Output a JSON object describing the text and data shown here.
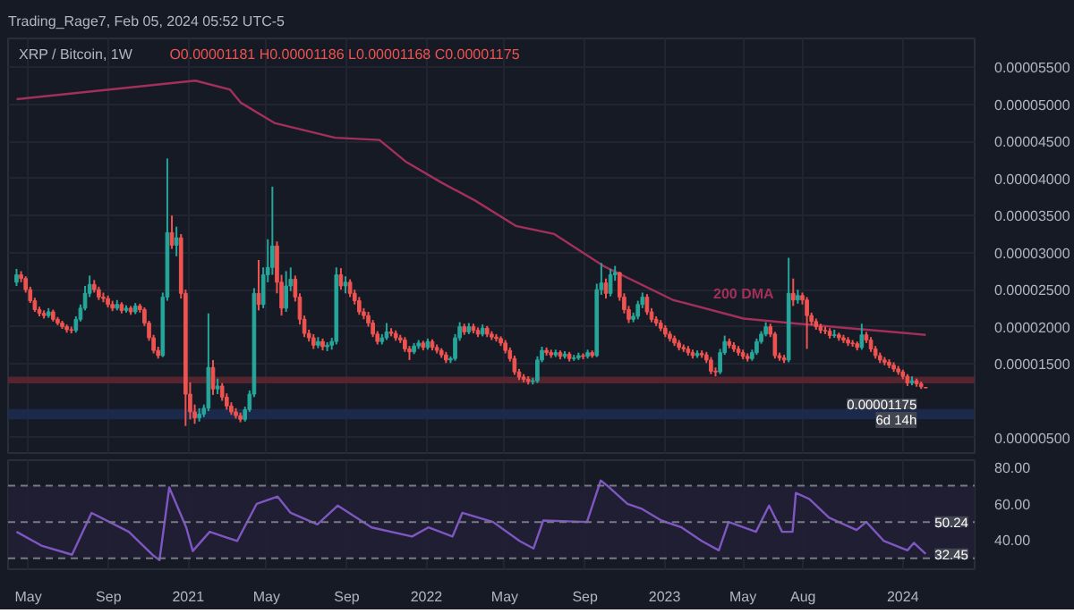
{
  "chart_data": [
    {
      "type": "candlestick",
      "title": "XRP / Bitcoin, 1W",
      "subtitle": "O0.00001181 H0.00001186 L0.00001168 C0.00001175",
      "x": [
        "2020-04-13",
        "2020-04-20",
        "2020-04-27",
        "2020-05-04",
        "2020-05-11",
        "2020-05-18",
        "2020-05-25",
        "2020-06-01",
        "2020-06-08",
        "2020-06-15",
        "2020-06-22",
        "2020-06-29",
        "2020-07-06",
        "2020-07-13",
        "2020-07-20",
        "2020-07-27",
        "2020-08-03",
        "2020-08-10",
        "2020-08-17",
        "2020-08-24",
        "2020-08-31",
        "2020-09-07",
        "2020-09-14",
        "2020-09-21",
        "2020-09-28",
        "2020-10-05",
        "2020-10-12",
        "2020-10-19",
        "2020-10-26",
        "2020-11-02",
        "2020-11-09",
        "2020-11-16",
        "2020-11-23",
        "2020-11-30",
        "2020-12-07",
        "2020-12-14",
        "2020-12-21",
        "2020-12-28",
        "2021-01-04",
        "2021-01-11",
        "2021-01-18",
        "2021-01-25",
        "2021-02-01",
        "2021-02-08",
        "2021-02-15",
        "2021-02-22",
        "2021-03-01",
        "2021-03-08",
        "2021-03-15",
        "2021-03-22",
        "2021-03-29",
        "2021-04-05",
        "2021-04-12",
        "2021-04-19",
        "2021-04-26",
        "2021-05-03",
        "2021-05-10",
        "2021-05-17",
        "2021-05-24",
        "2021-05-31",
        "2021-06-07",
        "2021-06-14",
        "2021-06-21",
        "2021-06-28",
        "2021-07-05",
        "2021-07-12",
        "2021-07-19",
        "2021-07-26",
        "2021-08-02",
        "2021-08-09",
        "2021-08-16",
        "2021-08-23",
        "2021-08-30",
        "2021-09-06",
        "2021-09-13",
        "2021-09-20",
        "2021-09-27",
        "2021-10-04",
        "2021-10-11",
        "2021-10-18",
        "2021-10-25",
        "2021-11-01",
        "2021-11-08",
        "2021-11-15",
        "2021-11-22",
        "2021-11-29",
        "2021-12-06",
        "2021-12-13",
        "2021-12-20",
        "2021-12-27",
        "2022-01-03",
        "2022-01-10",
        "2022-01-17",
        "2022-01-24",
        "2022-01-31",
        "2022-02-07",
        "2022-02-14",
        "2022-02-21",
        "2022-02-28",
        "2022-03-07",
        "2022-03-14",
        "2022-03-21",
        "2022-03-28",
        "2022-04-04",
        "2022-04-11",
        "2022-04-18",
        "2022-04-25",
        "2022-05-02",
        "2022-05-09",
        "2022-05-16",
        "2022-05-23",
        "2022-05-30",
        "2022-06-06",
        "2022-06-13",
        "2022-06-20",
        "2022-06-27",
        "2022-07-04",
        "2022-07-11",
        "2022-07-18",
        "2022-07-25",
        "2022-08-01",
        "2022-08-08",
        "2022-08-15",
        "2022-08-22",
        "2022-08-29",
        "2022-09-05",
        "2022-09-12",
        "2022-09-19",
        "2022-09-26",
        "2022-10-03",
        "2022-10-10",
        "2022-10-17",
        "2022-10-24",
        "2022-10-31",
        "2022-11-07",
        "2022-11-14",
        "2022-11-21",
        "2022-11-28",
        "2022-12-05",
        "2022-12-12",
        "2022-12-19",
        "2022-12-26",
        "2023-01-02",
        "2023-01-09",
        "2023-01-16",
        "2023-01-23",
        "2023-01-30",
        "2023-02-06",
        "2023-02-13",
        "2023-02-20",
        "2023-02-27",
        "2023-03-06",
        "2023-03-13",
        "2023-03-20",
        "2023-03-27",
        "2023-04-03",
        "2023-04-10",
        "2023-04-17",
        "2023-04-24",
        "2023-05-01",
        "2023-05-08",
        "2023-05-15",
        "2023-05-22",
        "2023-05-29",
        "2023-06-05",
        "2023-06-12",
        "2023-06-19",
        "2023-06-26",
        "2023-07-03",
        "2023-07-10",
        "2023-07-17",
        "2023-07-24",
        "2023-07-31",
        "2023-08-07",
        "2023-08-14",
        "2023-08-21",
        "2023-08-28",
        "2023-09-04",
        "2023-09-11",
        "2023-09-18",
        "2023-09-25",
        "2023-10-02",
        "2023-10-09",
        "2023-10-16",
        "2023-10-23",
        "2023-10-30",
        "2023-11-06",
        "2023-11-13",
        "2023-11-20",
        "2023-11-27",
        "2023-12-04",
        "2023-12-11",
        "2023-12-18",
        "2023-12-25",
        "2024-01-01",
        "2024-01-08",
        "2024-01-15",
        "2024-01-22",
        "2024-01-29",
        "2024-02-05"
      ],
      "ohlc": [
        [
          2.6e-05,
          2.78e-05,
          2.55e-05,
          2.7e-05
        ],
        [
          2.7e-05,
          2.75e-05,
          2.6e-05,
          2.65e-05
        ],
        [
          2.65e-05,
          2.68e-05,
          2.46e-05,
          2.5e-05
        ],
        [
          2.5e-05,
          2.54e-05,
          2.32e-05,
          2.35e-05
        ],
        [
          2.35e-05,
          2.39e-05,
          2.2e-05,
          2.23e-05
        ],
        [
          2.23e-05,
          2.27e-05,
          2.14e-05,
          2.18e-05
        ],
        [
          2.18e-05,
          2.22e-05,
          2.11e-05,
          2.15e-05
        ],
        [
          2.15e-05,
          2.25e-05,
          2.12e-05,
          2.2e-05
        ],
        [
          2.2e-05,
          2.23e-05,
          2.07e-05,
          2.1e-05
        ],
        [
          2.1e-05,
          2.13e-05,
          2.02e-05,
          2.05e-05
        ],
        [
          2.05e-05,
          2.08e-05,
          1.97e-05,
          2e-05
        ],
        [
          2e-05,
          2.03e-05,
          1.92e-05,
          1.96e-05
        ],
        [
          1.96e-05,
          2e-05,
          1.91e-05,
          1.95e-05
        ],
        [
          1.95e-05,
          2.14e-05,
          1.92e-05,
          2.1e-05
        ],
        [
          2.1e-05,
          2.3e-05,
          2.07e-05,
          2.25e-05
        ],
        [
          2.25e-05,
          2.55e-05,
          2.22e-05,
          2.45e-05
        ],
        [
          2.45e-05,
          2.69e-05,
          2.4e-05,
          2.57e-05
        ],
        [
          2.57e-05,
          2.63e-05,
          2.46e-05,
          2.5e-05
        ],
        [
          2.5e-05,
          2.54e-05,
          2.36e-05,
          2.4e-05
        ],
        [
          2.4e-05,
          2.46e-05,
          2.33e-05,
          2.38e-05
        ],
        [
          2.38e-05,
          2.42e-05,
          2.26e-05,
          2.3e-05
        ],
        [
          2.3e-05,
          2.35e-05,
          2.21e-05,
          2.25e-05
        ],
        [
          2.25e-05,
          2.36e-05,
          2.22e-05,
          2.3e-05
        ],
        [
          2.3e-05,
          2.33e-05,
          2.18e-05,
          2.22e-05
        ],
        [
          2.22e-05,
          2.29e-05,
          2.19e-05,
          2.25e-05
        ],
        [
          2.25e-05,
          2.28e-05,
          2.16e-05,
          2.2e-05
        ],
        [
          2.2e-05,
          2.32e-05,
          2.17e-05,
          2.28e-05
        ],
        [
          2.28e-05,
          2.31e-05,
          2.19e-05,
          2.23e-05
        ],
        [
          2.23e-05,
          2.26e-05,
          2.01e-05,
          2.05e-05
        ],
        [
          2.05e-05,
          2.08e-05,
          1.81e-05,
          1.85e-05
        ],
        [
          1.85e-05,
          1.89e-05,
          1.64e-05,
          1.68e-05
        ],
        [
          1.68e-05,
          1.73e-05,
          1.57e-05,
          1.61e-05
        ],
        [
          1.61e-05,
          2.46e-05,
          1.59e-05,
          2.4e-05
        ],
        [
          2.4e-05,
          4.27e-05,
          2.35e-05,
          3.27e-05
        ],
        [
          3.27e-05,
          3.5e-05,
          3.05e-05,
          3.1e-05
        ],
        [
          3.1e-05,
          3.35e-05,
          2.95e-05,
          3.2e-05
        ],
        [
          3.2e-05,
          3.25e-05,
          2.38e-05,
          2.45e-05
        ],
        [
          2.45e-05,
          2.5e-05,
          6.6e-06,
          1.09e-05
        ],
        [
          1.09e-05,
          1.25e-05,
          7.5e-06,
          8.5e-06
        ],
        [
          8.5e-06,
          9.5e-06,
          6.9e-06,
          7.7e-06
        ],
        [
          7.7e-06,
          9e-06,
          7.2e-06,
          8.2e-06
        ],
        [
          8.2e-06,
          9.5e-06,
          7.8e-06,
          9e-06
        ],
        [
          9e-06,
          2.18e-05,
          8.6e-06,
          1.45e-05
        ],
        [
          1.45e-05,
          1.55e-05,
          1.08e-05,
          1.16e-05
        ],
        [
          1.16e-05,
          1.3e-05,
          1.09e-05,
          1.2e-05
        ],
        [
          1.2e-05,
          1.24e-05,
          1e-05,
          1.05e-05
        ],
        [
          1.05e-05,
          1.1e-05,
          8.8e-06,
          9.3e-06
        ],
        [
          9.3e-06,
          9.8e-06,
          8.1e-06,
          8.5e-06
        ],
        [
          8.5e-06,
          9e-06,
          7.6e-06,
          8e-06
        ],
        [
          8e-06,
          8.4e-06,
          7.1e-06,
          7.5e-06
        ],
        [
          7.5e-06,
          9.2e-06,
          7.2e-06,
          8.8e-06
        ],
        [
          8.8e-06,
          1.14e-05,
          8.5e-06,
          1.09e-05
        ],
        [
          1.09e-05,
          2.52e-05,
          1.05e-05,
          2.45e-05
        ],
        [
          2.45e-05,
          2.9e-05,
          2.22e-05,
          2.3e-05
        ],
        [
          2.3e-05,
          2.8e-05,
          2.25e-05,
          2.7e-05
        ],
        [
          2.7e-05,
          3.18e-05,
          2.6e-05,
          2.8e-05
        ],
        [
          2.8e-05,
          3.89e-05,
          2.7e-05,
          3.09e-05
        ],
        [
          3.09e-05,
          3.15e-05,
          2.45e-05,
          2.6e-05
        ],
        [
          2.6e-05,
          2.7e-05,
          2.15e-05,
          2.25e-05
        ],
        [
          2.25e-05,
          2.75e-05,
          2.2e-05,
          2.55e-05
        ],
        [
          2.55e-05,
          2.8e-05,
          2.48e-05,
          2.64e-05
        ],
        [
          2.64e-05,
          2.69e-05,
          2.34e-05,
          2.4e-05
        ],
        [
          2.4e-05,
          2.45e-05,
          2.03e-05,
          2.1e-05
        ],
        [
          2.1e-05,
          2.15e-05,
          1.86e-05,
          1.91e-05
        ],
        [
          1.91e-05,
          1.96e-05,
          1.8e-05,
          1.85e-05
        ],
        [
          1.85e-05,
          1.9e-05,
          1.7e-05,
          1.75e-05
        ],
        [
          1.75e-05,
          1.86e-05,
          1.71e-05,
          1.8e-05
        ],
        [
          1.8e-05,
          1.84e-05,
          1.68e-05,
          1.73e-05
        ],
        [
          1.73e-05,
          1.79e-05,
          1.67e-05,
          1.75e-05
        ],
        [
          1.75e-05,
          1.85e-05,
          1.69e-05,
          1.8e-05
        ],
        [
          1.8e-05,
          2.8e-05,
          1.76e-05,
          2.7e-05
        ],
        [
          2.7e-05,
          2.79e-05,
          2.5e-05,
          2.55e-05
        ],
        [
          2.55e-05,
          2.68e-05,
          2.45e-05,
          2.6e-05
        ],
        [
          2.6e-05,
          2.64e-05,
          2.4e-05,
          2.45e-05
        ],
        [
          2.45e-05,
          2.5e-05,
          2.3e-05,
          2.35e-05
        ],
        [
          2.35e-05,
          2.4e-05,
          2.16e-05,
          2.2e-05
        ],
        [
          2.2e-05,
          2.25e-05,
          2.1e-05,
          2.15e-05
        ],
        [
          2.15e-05,
          2.2e-05,
          2e-05,
          2.05e-05
        ],
        [
          2.05e-05,
          2.09e-05,
          1.86e-05,
          1.9e-05
        ],
        [
          1.9e-05,
          1.94e-05,
          1.76e-05,
          1.8e-05
        ],
        [
          1.8e-05,
          1.9e-05,
          1.76e-05,
          1.85e-05
        ],
        [
          1.85e-05,
          2.05e-05,
          1.82e-05,
          1.93e-05
        ],
        [
          1.93e-05,
          1.98e-05,
          1.87e-05,
          1.91e-05
        ],
        [
          1.91e-05,
          1.95e-05,
          1.81e-05,
          1.85e-05
        ],
        [
          1.85e-05,
          1.89e-05,
          1.78e-05,
          1.82e-05
        ],
        [
          1.82e-05,
          1.86e-05,
          1.66e-05,
          1.7e-05
        ],
        [
          1.7e-05,
          1.74e-05,
          1.55e-05,
          1.66e-05
        ],
        [
          1.66e-05,
          1.78e-05,
          1.63e-05,
          1.74e-05
        ],
        [
          1.74e-05,
          1.82e-05,
          1.7e-05,
          1.78e-05
        ],
        [
          1.78e-05,
          1.81e-05,
          1.68e-05,
          1.72e-05
        ],
        [
          1.72e-05,
          1.84e-05,
          1.69e-05,
          1.8e-05
        ],
        [
          1.8e-05,
          1.83e-05,
          1.68e-05,
          1.72e-05
        ],
        [
          1.72e-05,
          1.76e-05,
          1.64e-05,
          1.68e-05
        ],
        [
          1.68e-05,
          1.71e-05,
          1.58e-05,
          1.62e-05
        ],
        [
          1.62e-05,
          1.66e-05,
          1.51e-05,
          1.55e-05
        ],
        [
          1.55e-05,
          1.6e-05,
          1.51e-05,
          1.57e-05
        ],
        [
          1.57e-05,
          1.9e-05,
          1.54e-05,
          1.85e-05
        ],
        [
          1.85e-05,
          2.06e-05,
          1.81e-05,
          2e-05
        ],
        [
          2e-05,
          2.04e-05,
          1.89e-05,
          1.93e-05
        ],
        [
          1.93e-05,
          2.05e-05,
          1.9e-05,
          2e-05
        ],
        [
          2e-05,
          2.04e-05,
          1.91e-05,
          1.95e-05
        ],
        [
          1.95e-05,
          1.99e-05,
          1.86e-05,
          1.9e-05
        ],
        [
          1.9e-05,
          2.03e-05,
          1.87e-05,
          1.98e-05
        ],
        [
          1.98e-05,
          2.01e-05,
          1.86e-05,
          1.9e-05
        ],
        [
          1.9e-05,
          1.94e-05,
          1.82e-05,
          1.86e-05
        ],
        [
          1.86e-05,
          1.9e-05,
          1.8e-05,
          1.84e-05
        ],
        [
          1.84e-05,
          1.87e-05,
          1.74e-05,
          1.78e-05
        ],
        [
          1.78e-05,
          1.82e-05,
          1.64e-05,
          1.68e-05
        ],
        [
          1.68e-05,
          1.72e-05,
          1.53e-05,
          1.57e-05
        ],
        [
          1.57e-05,
          1.61e-05,
          1.35e-05,
          1.39e-05
        ],
        [
          1.39e-05,
          1.43e-05,
          1.28e-05,
          1.32e-05
        ],
        [
          1.32e-05,
          1.36e-05,
          1.25e-05,
          1.29e-05
        ],
        [
          1.29e-05,
          1.33e-05,
          1.22e-05,
          1.26e-05
        ],
        [
          1.26e-05,
          1.31e-05,
          1.22e-05,
          1.27e-05
        ],
        [
          1.27e-05,
          1.6e-05,
          1.24e-05,
          1.55e-05
        ],
        [
          1.55e-05,
          1.73e-05,
          1.52e-05,
          1.68e-05
        ],
        [
          1.68e-05,
          1.72e-05,
          1.61e-05,
          1.65e-05
        ],
        [
          1.65e-05,
          1.69e-05,
          1.58e-05,
          1.62e-05
        ],
        [
          1.62e-05,
          1.69e-05,
          1.59e-05,
          1.65e-05
        ],
        [
          1.65e-05,
          1.68e-05,
          1.56e-05,
          1.6e-05
        ],
        [
          1.6e-05,
          1.67e-05,
          1.57e-05,
          1.63e-05
        ],
        [
          1.63e-05,
          1.66e-05,
          1.53e-05,
          1.57e-05
        ],
        [
          1.57e-05,
          1.62e-05,
          1.54e-05,
          1.58e-05
        ],
        [
          1.58e-05,
          1.65e-05,
          1.55e-05,
          1.61e-05
        ],
        [
          1.61e-05,
          1.64e-05,
          1.56e-05,
          1.6e-05
        ],
        [
          1.6e-05,
          1.69e-05,
          1.57e-05,
          1.65e-05
        ],
        [
          1.65e-05,
          1.68e-05,
          1.58e-05,
          1.61e-05
        ],
        [
          1.61e-05,
          2.58e-05,
          1.59e-05,
          2.5e-05
        ],
        [
          2.5e-05,
          2.86e-05,
          2.43e-05,
          2.59e-05
        ],
        [
          2.59e-05,
          2.65e-05,
          2.38e-05,
          2.45e-05
        ],
        [
          2.45e-05,
          2.78e-05,
          2.41e-05,
          2.7e-05
        ],
        [
          2.7e-05,
          2.82e-05,
          2.62e-05,
          2.73e-05
        ],
        [
          2.73e-05,
          2.74e-05,
          2.35e-05,
          2.4e-05
        ],
        [
          2.4e-05,
          2.45e-05,
          2.18e-05,
          2.23e-05
        ],
        [
          2.23e-05,
          2.28e-05,
          2.05e-05,
          2.1e-05
        ],
        [
          2.1e-05,
          2.19e-05,
          2.06e-05,
          2.14e-05
        ],
        [
          2.14e-05,
          2.35e-05,
          2.1e-05,
          2.3e-05
        ],
        [
          2.3e-05,
          2.46e-05,
          2.25e-05,
          2.4e-05
        ],
        [
          2.4e-05,
          2.44e-05,
          2.16e-05,
          2.2e-05
        ],
        [
          2.2e-05,
          2.25e-05,
          2.06e-05,
          2.1e-05
        ],
        [
          2.1e-05,
          2.14e-05,
          2.01e-05,
          2.05e-05
        ],
        [
          2.05e-05,
          2.09e-05,
          1.94e-05,
          1.98e-05
        ],
        [
          1.98e-05,
          2.02e-05,
          1.86e-05,
          1.9e-05
        ],
        [
          1.9e-05,
          1.94e-05,
          1.8e-05,
          1.84e-05
        ],
        [
          1.84e-05,
          1.88e-05,
          1.74e-05,
          1.78e-05
        ],
        [
          1.78e-05,
          1.82e-05,
          1.68e-05,
          1.72e-05
        ],
        [
          1.72e-05,
          1.76e-05,
          1.66e-05,
          1.7e-05
        ],
        [
          1.7e-05,
          1.74e-05,
          1.61e-05,
          1.65e-05
        ],
        [
          1.65e-05,
          1.69e-05,
          1.57e-05,
          1.61e-05
        ],
        [
          1.61e-05,
          1.68e-05,
          1.58e-05,
          1.64e-05
        ],
        [
          1.64e-05,
          1.68e-05,
          1.58e-05,
          1.62e-05
        ],
        [
          1.62e-05,
          1.66e-05,
          1.51e-05,
          1.55e-05
        ],
        [
          1.55e-05,
          1.59e-05,
          1.36e-05,
          1.4e-05
        ],
        [
          1.4e-05,
          1.45e-05,
          1.33e-05,
          1.39e-05
        ],
        [
          1.39e-05,
          1.7e-05,
          1.36e-05,
          1.65e-05
        ],
        [
          1.65e-05,
          1.88e-05,
          1.62e-05,
          1.8e-05
        ],
        [
          1.8e-05,
          1.84e-05,
          1.71e-05,
          1.75e-05
        ],
        [
          1.75e-05,
          1.79e-05,
          1.66e-05,
          1.7e-05
        ],
        [
          1.7e-05,
          1.74e-05,
          1.61e-05,
          1.65e-05
        ],
        [
          1.65e-05,
          1.69e-05,
          1.56e-05,
          1.6e-05
        ],
        [
          1.6e-05,
          1.64e-05,
          1.53e-05,
          1.57e-05
        ],
        [
          1.57e-05,
          1.69e-05,
          1.54e-05,
          1.65e-05
        ],
        [
          1.65e-05,
          1.84e-05,
          1.62e-05,
          1.8e-05
        ],
        [
          1.8e-05,
          1.94e-05,
          1.77e-05,
          1.9e-05
        ],
        [
          1.9e-05,
          2.06e-05,
          1.87e-05,
          2e-05
        ],
        [
          2e-05,
          2.04e-05,
          1.86e-05,
          1.9e-05
        ],
        [
          1.9e-05,
          1.93e-05,
          1.57e-05,
          1.61e-05
        ],
        [
          1.61e-05,
          1.65e-05,
          1.54e-05,
          1.58e-05
        ],
        [
          1.58e-05,
          1.62e-05,
          1.51e-05,
          1.55e-05
        ],
        [
          1.55e-05,
          2.93e-05,
          1.52e-05,
          2.45e-05
        ],
        [
          2.45e-05,
          2.65e-05,
          2.28e-05,
          2.36e-05
        ],
        [
          2.36e-05,
          2.5e-05,
          2.31e-05,
          2.42e-05
        ],
        [
          2.42e-05,
          2.46e-05,
          2.3e-05,
          2.36e-05
        ],
        [
          2.36e-05,
          2.4e-05,
          1.7e-05,
          2.15e-05
        ],
        [
          2.15e-05,
          2.19e-05,
          2.02e-05,
          2.07e-05
        ],
        [
          2.07e-05,
          2.11e-05,
          1.96e-05,
          2e-05
        ],
        [
          2e-05,
          2.04e-05,
          1.91e-05,
          1.95e-05
        ],
        [
          1.95e-05,
          2e-05,
          1.9e-05,
          1.94e-05
        ],
        [
          1.94e-05,
          1.98e-05,
          1.84e-05,
          1.88e-05
        ],
        [
          1.88e-05,
          1.96e-05,
          1.85e-05,
          1.89e-05
        ],
        [
          1.89e-05,
          1.92e-05,
          1.81e-05,
          1.85e-05
        ],
        [
          1.85e-05,
          1.89e-05,
          1.78e-05,
          1.82e-05
        ],
        [
          1.82e-05,
          1.86e-05,
          1.74e-05,
          1.78e-05
        ],
        [
          1.78e-05,
          1.82e-05,
          1.73e-05,
          1.77e-05
        ],
        [
          1.77e-05,
          1.8e-05,
          1.68e-05,
          1.72e-05
        ],
        [
          1.72e-05,
          2.04e-05,
          1.69e-05,
          1.89e-05
        ],
        [
          1.89e-05,
          1.93e-05,
          1.78e-05,
          1.82e-05
        ],
        [
          1.82e-05,
          1.86e-05,
          1.66e-05,
          1.7e-05
        ],
        [
          1.7e-05,
          1.74e-05,
          1.57e-05,
          1.61e-05
        ],
        [
          1.61e-05,
          1.65e-05,
          1.51e-05,
          1.55e-05
        ],
        [
          1.55e-05,
          1.59e-05,
          1.48e-05,
          1.52e-05
        ],
        [
          1.52e-05,
          1.56e-05,
          1.44e-05,
          1.48e-05
        ],
        [
          1.48e-05,
          1.52e-05,
          1.39e-05,
          1.43e-05
        ],
        [
          1.43e-05,
          1.47e-05,
          1.35e-05,
          1.39e-05
        ],
        [
          1.39e-05,
          1.42e-05,
          1.29e-05,
          1.33e-05
        ],
        [
          1.33e-05,
          1.36e-05,
          1.2e-05,
          1.24e-05
        ],
        [
          1.24e-05,
          1.33e-05,
          1.21e-05,
          1.27e-05
        ],
        [
          1.27e-05,
          1.3e-05,
          1.19e-05,
          1.23e-05
        ],
        [
          1.23e-05,
          1.26e-05,
          1.16e-05,
          1.19e-05
        ],
        [
          1.181e-05,
          1.186e-05,
          1.168e-05,
          1.175e-05
        ]
      ],
      "colors": [
        "#26a69a",
        "#ef5350",
        "#ef5350",
        "#ef5350",
        "#ef5350",
        "#ef5350",
        "#ef5350",
        "#26a69a",
        "#ef5350",
        "#ef5350",
        "#ef5350",
        "#ef5350",
        "#ef5350",
        "#26a69a",
        "#26a69a",
        "#26a69a",
        "#26a69a",
        "#ef5350",
        "#ef5350",
        "#ef5350",
        "#ef5350",
        "#ef5350",
        "#26a69a",
        "#ef5350",
        "#26a69a",
        "#ef5350",
        "#26a69a",
        "#ef5350",
        "#ef5350",
        "#ef5350",
        "#ef5350",
        "#ef5350",
        "#26a69a",
        "#26a69a",
        "#ef5350",
        "#26a69a",
        "#ef5350",
        "#ef5350",
        "#ef5350",
        "#ef5350",
        "#26a69a",
        "#26a69a",
        "#26a69a",
        "#ef5350",
        "#26a69a",
        "#ef5350",
        "#ef5350",
        "#ef5350",
        "#ef5350",
        "#ef5350",
        "#26a69a",
        "#26a69a",
        "#26a69a",
        "#ef5350",
        "#26a69a",
        "#26a69a",
        "#26a69a",
        "#ef5350",
        "#ef5350",
        "#26a69a",
        "#26a69a",
        "#ef5350",
        "#ef5350",
        "#ef5350",
        "#ef5350",
        "#ef5350",
        "#26a69a",
        "#ef5350",
        "#26a69a",
        "#26a69a",
        "#26a69a",
        "#ef5350",
        "#26a69a",
        "#ef5350",
        "#ef5350",
        "#ef5350",
        "#ef5350",
        "#ef5350",
        "#ef5350",
        "#ef5350",
        "#26a69a",
        "#26a69a",
        "#ef5350",
        "#ef5350",
        "#ef5350",
        "#ef5350",
        "#ef5350",
        "#26a69a",
        "#26a69a",
        "#ef5350",
        "#26a69a",
        "#ef5350",
        "#ef5350",
        "#ef5350",
        "#ef5350",
        "#26a69a",
        "#26a69a",
        "#26a69a",
        "#ef5350",
        "#26a69a",
        "#ef5350",
        "#ef5350",
        "#26a69a",
        "#ef5350",
        "#ef5350",
        "#ef5350",
        "#ef5350",
        "#ef5350",
        "#ef5350",
        "#ef5350",
        "#ef5350",
        "#ef5350",
        "#ef5350",
        "#26a69a",
        "#26a69a",
        "#26a69a",
        "#ef5350",
        "#ef5350",
        "#26a69a",
        "#ef5350",
        "#26a69a",
        "#ef5350",
        "#26a69a",
        "#26a69a",
        "#ef5350",
        "#26a69a",
        "#ef5350",
        "#26a69a",
        "#26a69a",
        "#ef5350",
        "#26a69a",
        "#26a69a",
        "#ef5350",
        "#ef5350",
        "#ef5350",
        "#26a69a",
        "#26a69a",
        "#26a69a",
        "#ef5350",
        "#ef5350",
        "#ef5350",
        "#ef5350",
        "#ef5350",
        "#ef5350",
        "#ef5350",
        "#ef5350",
        "#ef5350",
        "#ef5350",
        "#ef5350",
        "#26a69a",
        "#ef5350",
        "#ef5350",
        "#ef5350",
        "#ef5350",
        "#26a69a",
        "#26a69a",
        "#ef5350",
        "#ef5350",
        "#ef5350",
        "#ef5350",
        "#ef5350",
        "#26a69a",
        "#26a69a",
        "#26a69a",
        "#26a69a",
        "#ef5350",
        "#ef5350",
        "#ef5350",
        "#ef5350",
        "#26a69a",
        "#ef5350",
        "#26a69a",
        "#ef5350",
        "#ef5350",
        "#ef5350",
        "#ef5350",
        "#ef5350",
        "#ef5350",
        "#ef5350",
        "#26a69a",
        "#ef5350",
        "#ef5350",
        "#ef5350",
        "#ef5350",
        "#ef5350",
        "#26a69a",
        "#ef5350",
        "#ef5350",
        "#ef5350",
        "#ef5350",
        "#ef5350",
        "#ef5350",
        "#ef5350",
        "#ef5350",
        "#ef5350",
        "#ef5350",
        "#26a69a",
        "#ef5350",
        "#ef5350",
        "#ef5350"
      ],
      "series": [
        {
          "type": "line",
          "name": "200 DMA",
          "color": "#a3305a",
          "x": [
            "2020-04-13",
            "2021-01-12",
            "2021-03-06",
            "2021-03-23",
            "2021-05-13",
            "2021-08-14",
            "2021-10-21",
            "2021-11-30",
            "2022-01-23",
            "2022-03-17",
            "2022-05-18",
            "2022-07-16",
            "2022-09-29",
            "2023-01-14",
            "2023-05-02",
            "2023-07-13",
            "2023-10-10",
            "2024-02-05"
          ],
          "values": [
            5.07e-05,
            5.32e-05,
            5.2e-05,
            5.02e-05,
            4.75e-05,
            4.55e-05,
            4.52e-05,
            4.23e-05,
            3.95e-05,
            3.7e-05,
            3.36e-05,
            3.25e-05,
            2.82e-05,
            2.36e-05,
            2.11e-05,
            2.05e-05,
            1.98e-05,
            1.89e-05
          ]
        }
      ],
      "xlim": [
        "2020-03-31",
        "2024-04-20"
      ],
      "ylim": [
        2.95e-06,
        5.89e-05
      ],
      "xticks": [
        {
          "value": "2020-05-01",
          "label": null
        },
        {
          "value": "2020-09-01",
          "label": null
        },
        {
          "value": "2021-01-01",
          "label": null
        },
        {
          "value": "2021-05-01",
          "label": null
        },
        {
          "value": "2021-09-01",
          "label": null
        },
        {
          "value": "2022-01-01",
          "label": null
        },
        {
          "value": "2022-05-01",
          "label": null
        },
        {
          "value": "2022-09-01",
          "label": null
        },
        {
          "value": "2023-01-01",
          "label": null
        },
        {
          "value": "2023-05-01",
          "label": null
        },
        {
          "value": "2023-08-01",
          "label": null
        },
        {
          "value": "2024-01-01",
          "label": null
        }
      ],
      "yticks": [
        {
          "value": 5.5e-05,
          "label": "0.00005500"
        },
        {
          "value": 5e-05,
          "label": "0.00005000"
        },
        {
          "value": 4.5e-05,
          "label": "0.00004500"
        },
        {
          "value": 4e-05,
          "label": "0.00004000"
        },
        {
          "value": 3.5e-05,
          "label": "0.00003500"
        },
        {
          "value": 3e-05,
          "label": "0.00003000"
        },
        {
          "value": 2.5e-05,
          "label": "0.00002500"
        },
        {
          "value": 2e-05,
          "label": "0.00002000"
        },
        {
          "value": 1.5e-05,
          "label": "0.00001500"
        },
        {
          "value": 5e-06,
          "label": "0.00000500"
        }
      ],
      "bands": [
        {
          "axis": "y",
          "from": 1.235e-05,
          "to": 1.325e-05,
          "color": "#5c2630"
        },
        {
          "axis": "y",
          "from": 7.5e-06,
          "to": 8.9e-06,
          "color": "#1c2b4f"
        }
      ],
      "annotations": [
        "Trading_Rage7, Feb 05, 2024 05:52 UTC-5",
        {
          "text": "0.00001175",
          "x": "2024-02-05",
          "y": 1.175e-05
        },
        {
          "text": "6d 14h",
          "x": "2024-02-05",
          "y": 1.175e-05
        }
      ],
      "grid": true,
      "tick_labels": "y"
    },
    {
      "type": "line",
      "color": "#7e57c2",
      "x": [
        "2020-04-13",
        "2020-05-21",
        "2020-07-07",
        "2020-08-06",
        "2020-10-02",
        "2020-11-07",
        "2020-11-18",
        "2020-12-03",
        "2020-12-29",
        "2021-01-08",
        "2021-02-03",
        "2021-03-17",
        "2021-04-16",
        "2021-05-18",
        "2021-06-07",
        "2021-07-18",
        "2021-08-18",
        "2021-10-09",
        "2021-12-10",
        "2022-01-04",
        "2022-02-10",
        "2022-02-25",
        "2022-04-13",
        "2022-05-24",
        "2022-06-14",
        "2022-06-29",
        "2022-09-04",
        "2022-09-25",
        "2022-10-05",
        "2022-11-05",
        "2022-11-26",
        "2022-12-27",
        "2023-01-27",
        "2023-02-27",
        "2023-03-25",
        "2023-04-09",
        "2023-05-21",
        "2023-06-10",
        "2023-06-30",
        "2023-07-16",
        "2023-07-21",
        "2023-08-11",
        "2023-09-10",
        "2023-10-22",
        "2023-11-06",
        "2023-12-03",
        "2024-01-08",
        "2024-01-18",
        "2024-02-05"
      ],
      "values": [
        44.6,
        37,
        32,
        55,
        44.6,
        32,
        29,
        69,
        47,
        34,
        44.6,
        39.5,
        60,
        64,
        55,
        48.7,
        59,
        47,
        42,
        47,
        42,
        55,
        50,
        39.5,
        35.4,
        50.8,
        50,
        72.8,
        70,
        60,
        57.4,
        50.8,
        47,
        39.5,
        34.4,
        50,
        44.6,
        59,
        44.6,
        44.6,
        66,
        62.6,
        52.3,
        45.6,
        50,
        39.5,
        34.4,
        38.5,
        32.45
      ],
      "xlim": [
        "2020-03-31",
        "2024-04-20"
      ],
      "ylim": [
        24,
        84
      ],
      "xticks": [
        {
          "value": "2020-05-01",
          "label": "May"
        },
        {
          "value": "2020-09-01",
          "label": "Sep"
        },
        {
          "value": "2021-01-01",
          "label": "2021"
        },
        {
          "value": "2021-05-01",
          "label": "May"
        },
        {
          "value": "2021-09-01",
          "label": "Sep"
        },
        {
          "value": "2022-01-01",
          "label": "2022"
        },
        {
          "value": "2022-05-01",
          "label": "May"
        },
        {
          "value": "2022-09-01",
          "label": "Sep"
        },
        {
          "value": "2023-01-01",
          "label": "2023"
        },
        {
          "value": "2023-05-01",
          "label": "May"
        },
        {
          "value": "2023-08-01",
          "label": "Aug"
        },
        {
          "value": "2024-01-01",
          "label": "2024"
        }
      ],
      "yticks": [
        {
          "value": 80,
          "label": "80.00"
        },
        {
          "value": 60,
          "label": "60.00"
        },
        {
          "value": 40,
          "label": "40.00"
        }
      ],
      "ref_lines": [
        {
          "axis": "y",
          "value": 70,
          "color": "#787b86",
          "line_style": "dashed"
        },
        {
          "axis": "y",
          "value": 50,
          "color": "#787b86",
          "line_style": "dashed"
        },
        {
          "axis": "y",
          "value": 30,
          "color": "#787b86",
          "line_style": "dashed"
        }
      ],
      "bands": [
        {
          "axis": "y",
          "from": 30,
          "to": 70,
          "color": "#211f35"
        }
      ],
      "annotations": [
        {
          "text": "50.24",
          "x": "2024-02-05",
          "y": 50.24
        },
        {
          "text": "32.45",
          "x": "2024-02-05",
          "y": 32.45
        }
      ],
      "grid": "x"
    }
  ]
}
